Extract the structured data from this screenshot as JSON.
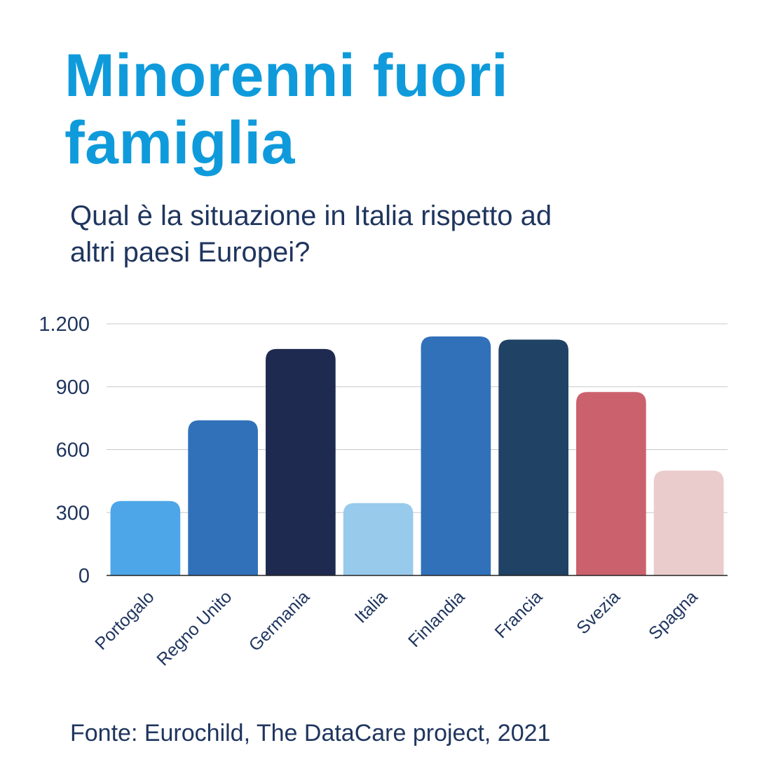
{
  "header": {
    "title_lines": [
      "Minorenni fuori",
      "famiglia"
    ],
    "subtitle_lines": [
      "Qual è la situazione in Italia rispetto ad",
      "altri paesi Europei?"
    ]
  },
  "footer": {
    "source": "Fonte: Eurochild, The DataCare project, 2021"
  },
  "colors": {
    "title": "#0F9BDB",
    "text": "#1F355E",
    "gridline": "#C8C8C8",
    "axis": "#222222"
  },
  "chart_data": {
    "type": "bar",
    "categories": [
      "Portogalo",
      "Regno Unito",
      "Germania",
      "Italia",
      "Finlandia",
      "Francia",
      "Svezia",
      "Spagna"
    ],
    "values": [
      355,
      740,
      1080,
      345,
      1140,
      1125,
      875,
      500
    ],
    "bar_colors": [
      "#4DA6E8",
      "#3171BA",
      "#1F2A50",
      "#98CAEC",
      "#3171BA",
      "#1F4265",
      "#CC616E",
      "#E9CCCB"
    ],
    "y_ticks": [
      0,
      300,
      600,
      900,
      1200
    ],
    "y_tick_labels": [
      "0",
      "300",
      "600",
      "900",
      "1.200"
    ],
    "ylim": [
      0,
      1200
    ],
    "grid": true,
    "legend": "none",
    "xlabel": "",
    "ylabel": ""
  }
}
